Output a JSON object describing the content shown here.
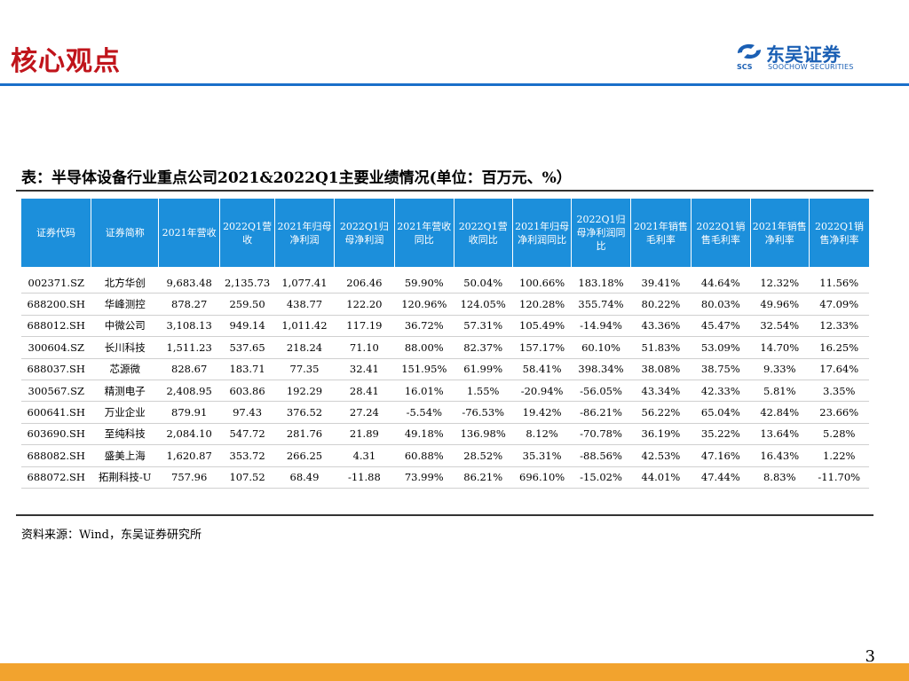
{
  "header": {
    "title": "核心观点",
    "logo_cn": "东吴证券",
    "logo_en": "SOOCHOW SECURITIES",
    "logo_abbr": "SCS"
  },
  "table": {
    "caption": "表：半导体设备行业重点公司2021&2022Q1主要业绩情况(单位：百万元、%）",
    "headers": [
      "证券代码",
      "证券简称",
      "2021年营收",
      "2022Q1营收",
      "2021年归母净利润",
      "2022Q1归母净利润",
      "2021年营收同比",
      "2022Q1营收同比",
      "2021年归母净利润同比",
      "2022Q1归母净利润同比",
      "2021年销售毛利率",
      "2022Q1销售毛利率",
      "2021年销售净利率",
      "2022Q1销售净利率"
    ],
    "rows": [
      [
        "002371.SZ",
        "北方华创",
        "9,683.48",
        "2,135.73",
        "1,077.41",
        "206.46",
        "59.90%",
        "50.04%",
        "100.66%",
        "183.18%",
        "39.41%",
        "44.64%",
        "12.32%",
        "11.56%"
      ],
      [
        "688200.SH",
        "华峰测控",
        "878.27",
        "259.50",
        "438.77",
        "122.20",
        "120.96%",
        "124.05%",
        "120.28%",
        "355.74%",
        "80.22%",
        "80.03%",
        "49.96%",
        "47.09%"
      ],
      [
        "688012.SH",
        "中微公司",
        "3,108.13",
        "949.14",
        "1,011.42",
        "117.19",
        "36.72%",
        "57.31%",
        "105.49%",
        "-14.94%",
        "43.36%",
        "45.47%",
        "32.54%",
        "12.33%"
      ],
      [
        "300604.SZ",
        "长川科技",
        "1,511.23",
        "537.65",
        "218.24",
        "71.10",
        "88.00%",
        "82.37%",
        "157.17%",
        "60.10%",
        "51.83%",
        "53.09%",
        "14.70%",
        "16.25%"
      ],
      [
        "688037.SH",
        "芯源微",
        "828.67",
        "183.71",
        "77.35",
        "32.41",
        "151.95%",
        "61.99%",
        "58.41%",
        "398.34%",
        "38.08%",
        "38.75%",
        "9.33%",
        "17.64%"
      ],
      [
        "300567.SZ",
        "精测电子",
        "2,408.95",
        "603.86",
        "192.29",
        "28.41",
        "16.01%",
        "1.55%",
        "-20.94%",
        "-56.05%",
        "43.34%",
        "42.33%",
        "5.81%",
        "3.35%"
      ],
      [
        "600641.SH",
        "万业企业",
        "879.91",
        "97.43",
        "376.52",
        "27.24",
        "-5.54%",
        "-76.53%",
        "19.42%",
        "-86.21%",
        "56.22%",
        "65.04%",
        "42.84%",
        "23.66%"
      ],
      [
        "603690.SH",
        "至纯科技",
        "2,084.10",
        "547.72",
        "281.76",
        "21.89",
        "49.18%",
        "136.98%",
        "8.12%",
        "-70.78%",
        "36.19%",
        "35.22%",
        "13.64%",
        "5.28%"
      ],
      [
        "688082.SH",
        "盛美上海",
        "1,620.87",
        "353.72",
        "266.25",
        "4.31",
        "60.88%",
        "28.52%",
        "35.31%",
        "-88.56%",
        "42.53%",
        "47.16%",
        "16.43%",
        "1.22%"
      ],
      [
        "688072.SH",
        "拓荆科技-U",
        "757.96",
        "107.52",
        "68.49",
        "-11.88",
        "73.99%",
        "86.21%",
        "696.10%",
        "-15.02%",
        "44.01%",
        "47.44%",
        "8.83%",
        "-11.70%"
      ]
    ]
  },
  "source_note": "资料来源：Wind，东吴证券研究所",
  "page_number": "3",
  "colors": {
    "title_red": "#c0141b",
    "header_blue": "#1c8fdb",
    "rule_blue": "#1a6fc9",
    "footer_orange": "#f2a32e"
  }
}
